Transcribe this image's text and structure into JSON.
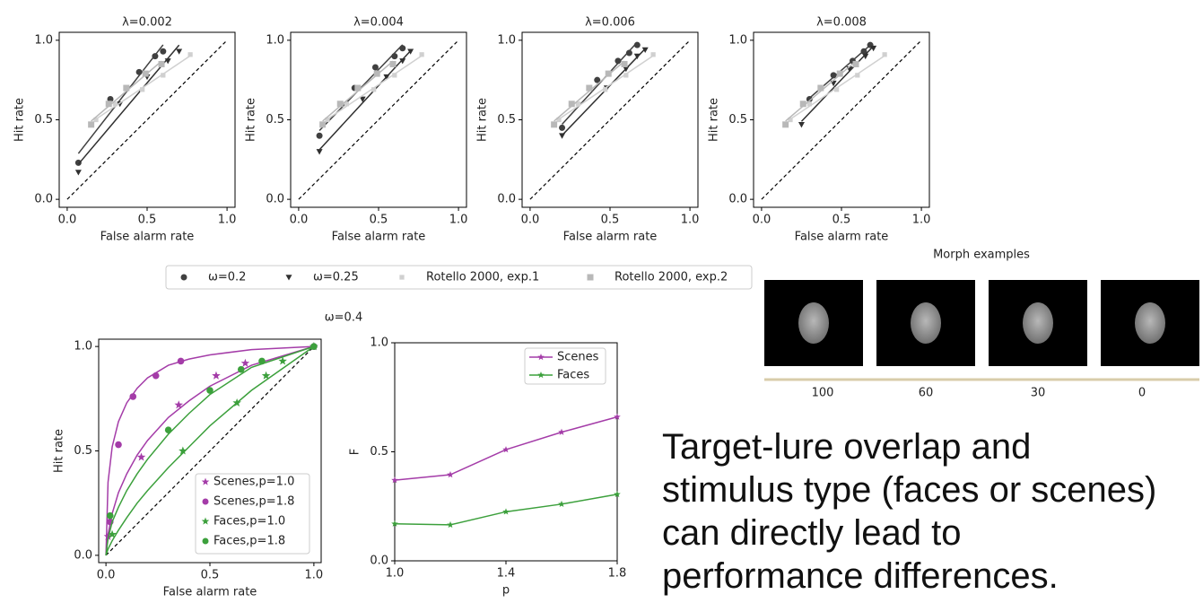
{
  "chart_data": [
    {
      "type": "scatter",
      "xlabel": "False alarm rate",
      "ylabel": "Hit rate",
      "xlim": [
        -0.05,
        1.05
      ],
      "ylim": [
        -0.05,
        1.05
      ],
      "xticks": [
        {
          "value": 0,
          "label": "0.0"
        },
        {
          "value": 0.5,
          "label": "0.5"
        },
        {
          "value": 1,
          "label": "1.0"
        }
      ],
      "yticks": [
        {
          "value": 0,
          "label": "0.0"
        },
        {
          "value": 0.5,
          "label": "0.5"
        },
        {
          "value": 1,
          "label": "1.0"
        }
      ],
      "series": [
        {
          "name": "ω=0.2",
          "color": "#404040",
          "marker": "circle"
        },
        {
          "name": "ω=0.25",
          "color": "#303030",
          "marker": "triangle"
        },
        {
          "name": "Rotello 2000, exp.1",
          "color": "#d0d0d0",
          "marker": "small-square"
        },
        {
          "name": "Rotello 2000, exp.2",
          "color": "#b8b8b8",
          "marker": "square"
        }
      ],
      "panels": [
        {
          "title": "λ=0.002",
          "series": [
            {
              "x": [
                0.07,
                0.27,
                0.45,
                0.55,
                0.6
              ],
              "values": [
                0.23,
                0.63,
                0.8,
                0.9,
                0.93
              ]
            },
            {
              "x": [
                0.07,
                0.33,
                0.5,
                0.63,
                0.7
              ],
              "values": [
                0.17,
                0.6,
                0.77,
                0.87,
                0.93
              ]
            },
            {
              "x": [
                0.18,
                0.3,
                0.47,
                0.6,
                0.77
              ],
              "values": [
                0.5,
                0.6,
                0.69,
                0.78,
                0.91
              ]
            },
            {
              "x": [
                0.15,
                0.26,
                0.37,
                0.49,
                0.59
              ],
              "values": [
                0.47,
                0.6,
                0.7,
                0.79,
                0.85
              ]
            }
          ]
        },
        {
          "title": "λ=0.004",
          "series": [
            {
              "x": [
                0.13,
                0.35,
                0.48,
                0.6,
                0.65
              ],
              "values": [
                0.4,
                0.7,
                0.83,
                0.9,
                0.95
              ]
            },
            {
              "x": [
                0.13,
                0.4,
                0.55,
                0.65,
                0.7
              ],
              "values": [
                0.3,
                0.63,
                0.77,
                0.87,
                0.93
              ]
            },
            {
              "x": [
                0.18,
                0.3,
                0.47,
                0.6,
                0.77
              ],
              "values": [
                0.5,
                0.6,
                0.69,
                0.78,
                0.91
              ]
            },
            {
              "x": [
                0.15,
                0.26,
                0.37,
                0.49,
                0.59
              ],
              "values": [
                0.47,
                0.6,
                0.7,
                0.79,
                0.85
              ]
            }
          ]
        },
        {
          "title": "λ=0.006",
          "series": [
            {
              "x": [
                0.2,
                0.42,
                0.55,
                0.62,
                0.67
              ],
              "values": [
                0.45,
                0.75,
                0.87,
                0.92,
                0.97
              ]
            },
            {
              "x": [
                0.2,
                0.48,
                0.6,
                0.67,
                0.72
              ],
              "values": [
                0.4,
                0.7,
                0.82,
                0.9,
                0.94
              ]
            },
            {
              "x": [
                0.18,
                0.3,
                0.47,
                0.6,
                0.77
              ],
              "values": [
                0.5,
                0.6,
                0.69,
                0.78,
                0.91
              ]
            },
            {
              "x": [
                0.15,
                0.26,
                0.37,
                0.49,
                0.59
              ],
              "values": [
                0.47,
                0.6,
                0.7,
                0.79,
                0.85
              ]
            }
          ]
        },
        {
          "title": "λ=0.008",
          "series": [
            {
              "x": [
                0.3,
                0.45,
                0.57,
                0.64,
                0.68
              ],
              "values": [
                0.63,
                0.78,
                0.87,
                0.93,
                0.97
              ]
            },
            {
              "x": [
                0.25,
                0.45,
                0.55,
                0.65,
                0.7
              ],
              "values": [
                0.47,
                0.73,
                0.82,
                0.9,
                0.95
              ]
            },
            {
              "x": [
                0.18,
                0.3,
                0.47,
                0.6,
                0.77
              ],
              "values": [
                0.5,
                0.6,
                0.69,
                0.78,
                0.91
              ]
            },
            {
              "x": [
                0.15,
                0.26,
                0.37,
                0.49,
                0.59
              ],
              "values": [
                0.47,
                0.6,
                0.7,
                0.79,
                0.85
              ]
            }
          ]
        }
      ]
    },
    {
      "type": "scatter",
      "title": "ω=0.4",
      "xlabel": "False alarm rate",
      "ylabel": "Hit rate",
      "xlim": [
        -0.035,
        1.035
      ],
      "ylim": [
        -0.035,
        1.035
      ],
      "xticks": [
        {
          "value": 0,
          "label": "0.0"
        },
        {
          "value": 0.5,
          "label": "0.5"
        },
        {
          "value": 1,
          "label": "1.0"
        }
      ],
      "yticks": [
        {
          "value": 0,
          "label": "0.0"
        },
        {
          "value": 0.5,
          "label": "0.5"
        },
        {
          "value": 1,
          "label": "1.0"
        }
      ],
      "legend": "lower right",
      "fit_x": [
        0,
        0.01,
        0.03,
        0.06,
        0.1,
        0.15,
        0.2,
        0.3,
        0.4,
        0.5,
        0.7,
        1.0
      ],
      "series": [
        {
          "name": "Scenes,p=1.0",
          "color": "#a43ca8",
          "marker": "star",
          "x": [
            0.01,
            0.17,
            0.35,
            0.53,
            0.67,
            1.0
          ],
          "values": [
            0.09,
            0.47,
            0.72,
            0.86,
            0.92,
            1.0
          ],
          "fit_values": [
            0,
            0.1,
            0.2,
            0.3,
            0.39,
            0.48,
            0.55,
            0.66,
            0.74,
            0.81,
            0.91,
            1.0
          ]
        },
        {
          "name": "Scenes,p=1.8",
          "color": "#a43ca8",
          "marker": "circle",
          "x": [
            0.02,
            0.06,
            0.13,
            0.24,
            0.36,
            1.0
          ],
          "values": [
            0.16,
            0.53,
            0.76,
            0.86,
            0.93,
            1.0
          ],
          "fit_values": [
            0,
            0.35,
            0.52,
            0.64,
            0.73,
            0.8,
            0.85,
            0.91,
            0.94,
            0.96,
            0.985,
            1.0
          ]
        },
        {
          "name": "Faces,p=1.0",
          "color": "#3ca03c",
          "marker": "star",
          "x": [
            0.03,
            0.37,
            0.63,
            0.77,
            0.85,
            1.0
          ],
          "values": [
            0.1,
            0.5,
            0.73,
            0.86,
            0.93,
            1.0
          ],
          "fit_values": [
            0,
            0.03,
            0.07,
            0.12,
            0.18,
            0.25,
            0.31,
            0.42,
            0.52,
            0.62,
            0.79,
            1.0
          ]
        },
        {
          "name": "Faces,p=1.8",
          "color": "#3ca03c",
          "marker": "circle",
          "x": [
            0.02,
            0.3,
            0.5,
            0.65,
            0.75,
            1.0
          ],
          "values": [
            0.19,
            0.6,
            0.79,
            0.89,
            0.93,
            1.0
          ],
          "fit_values": [
            0,
            0.08,
            0.16,
            0.23,
            0.31,
            0.39,
            0.46,
            0.58,
            0.68,
            0.77,
            0.9,
            1.0
          ]
        }
      ]
    },
    {
      "type": "line",
      "xlabel": "p",
      "ylabel": "F",
      "x": [
        1.0,
        1.2,
        1.4,
        1.6,
        1.8
      ],
      "xlim": [
        1.0,
        1.8
      ],
      "ylim": [
        0,
        1
      ],
      "xticks": [
        {
          "value": 1.0,
          "label": "1.0"
        },
        {
          "value": 1.4,
          "label": "1.4"
        },
        {
          "value": 1.8,
          "label": "1.8"
        }
      ],
      "yticks": [
        {
          "value": 0,
          "label": "0.0"
        },
        {
          "value": 0.5,
          "label": "0.5"
        },
        {
          "value": 1,
          "label": "1.0"
        }
      ],
      "legend": "upper right",
      "series": [
        {
          "name": "Scenes",
          "color": "#a43ca8",
          "marker": "star",
          "values": [
            0.37,
            0.395,
            0.51,
            0.59,
            0.66
          ]
        },
        {
          "name": "Faces",
          "color": "#3ca03c",
          "marker": "star",
          "values": [
            0.17,
            0.165,
            0.225,
            0.26,
            0.305
          ]
        }
      ]
    }
  ],
  "morph": {
    "title": "Morph examples",
    "labels": [
      100,
      60,
      30,
      0
    ]
  },
  "caption": "Target-lure overlap and stimulus type (faces or scenes)  can directly lead to performance differences."
}
